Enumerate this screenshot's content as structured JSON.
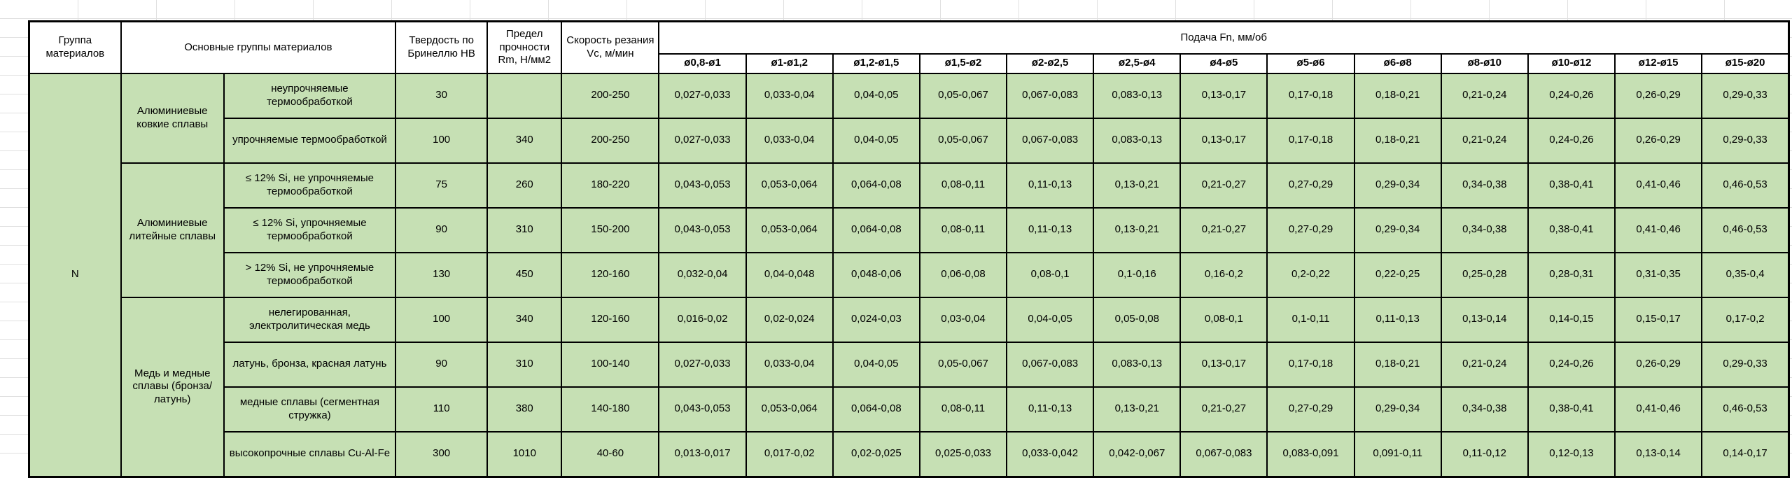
{
  "colors": {
    "cell_green": "#c6e0b4",
    "border_black": "#000000",
    "gridline_gray": "#e0e0e0",
    "header_bg": "#ffffff"
  },
  "table": {
    "headers": {
      "group": "Группа материалов",
      "main_groups": "Основные группы материалов",
      "hardness": "Твердость по Бринеллю HB",
      "strength": "Предел прочности Rm, Н/мм2",
      "speed": "Скорость резания Vc, м/мин",
      "feed": "Подача Fn, мм/об"
    },
    "feed_columns": [
      "ø0,8-ø1",
      "ø1-ø1,2",
      "ø1,2-ø1,5",
      "ø1,5-ø2",
      "ø2-ø2,5",
      "ø2,5-ø4",
      "ø4-ø5",
      "ø5-ø6",
      "ø6-ø8",
      "ø8-ø10",
      "ø10-ø12",
      "ø12-ø15",
      "ø15-ø20"
    ],
    "group_label": "N",
    "material_groups": [
      {
        "name": "Алюминиевые ковкие сплавы",
        "rows": [
          {
            "label": "неупрочняемые термообработкой",
            "hardness": "30",
            "strength": "",
            "speed": "200-250",
            "feeds": [
              "0,027-0,033",
              "0,033-0,04",
              "0,04-0,05",
              "0,05-0,067",
              "0,067-0,083",
              "0,083-0,13",
              "0,13-0,17",
              "0,17-0,18",
              "0,18-0,21",
              "0,21-0,24",
              "0,24-0,26",
              "0,26-0,29",
              "0,29-0,33"
            ]
          },
          {
            "label": "упрочняемые термообработкой",
            "hardness": "100",
            "strength": "340",
            "speed": "200-250",
            "feeds": [
              "0,027-0,033",
              "0,033-0,04",
              "0,04-0,05",
              "0,05-0,067",
              "0,067-0,083",
              "0,083-0,13",
              "0,13-0,17",
              "0,17-0,18",
              "0,18-0,21",
              "0,21-0,24",
              "0,24-0,26",
              "0,26-0,29",
              "0,29-0,33"
            ]
          }
        ]
      },
      {
        "name": "Алюминиевые литейные сплавы",
        "rows": [
          {
            "label": "≤ 12% Si, не упрочняемые термообработкой",
            "hardness": "75",
            "strength": "260",
            "speed": "180-220",
            "feeds": [
              "0,043-0,053",
              "0,053-0,064",
              "0,064-0,08",
              "0,08-0,11",
              "0,11-0,13",
              "0,13-0,21",
              "0,21-0,27",
              "0,27-0,29",
              "0,29-0,34",
              "0,34-0,38",
              "0,38-0,41",
              "0,41-0,46",
              "0,46-0,53"
            ]
          },
          {
            "label": "≤ 12% Si, упрочняемые термообработкой",
            "hardness": "90",
            "strength": "310",
            "speed": "150-200",
            "feeds": [
              "0,043-0,053",
              "0,053-0,064",
              "0,064-0,08",
              "0,08-0,11",
              "0,11-0,13",
              "0,13-0,21",
              "0,21-0,27",
              "0,27-0,29",
              "0,29-0,34",
              "0,34-0,38",
              "0,38-0,41",
              "0,41-0,46",
              "0,46-0,53"
            ]
          },
          {
            "label": "> 12% Si, не упрочняемые термообработкой",
            "hardness": "130",
            "strength": "450",
            "speed": "120-160",
            "feeds": [
              "0,032-0,04",
              "0,04-0,048",
              "0,048-0,06",
              "0,06-0,08",
              "0,08-0,1",
              "0,1-0,16",
              "0,16-0,2",
              "0,2-0,22",
              "0,22-0,25",
              "0,25-0,28",
              "0,28-0,31",
              "0,31-0,35",
              "0,35-0,4"
            ]
          }
        ]
      },
      {
        "name": "Медь и медные сплавы (бронза/латунь)",
        "rows": [
          {
            "label": "нелегированная, электролитическая медь",
            "hardness": "100",
            "strength": "340",
            "speed": "120-160",
            "feeds": [
              "0,016-0,02",
              "0,02-0,024",
              "0,024-0,03",
              "0,03-0,04",
              "0,04-0,05",
              "0,05-0,08",
              "0,08-0,1",
              "0,1-0,11",
              "0,11-0,13",
              "0,13-0,14",
              "0,14-0,15",
              "0,15-0,17",
              "0,17-0,2"
            ]
          },
          {
            "label": "латунь, бронза, красная латунь",
            "hardness": "90",
            "strength": "310",
            "speed": "100-140",
            "feeds": [
              "0,027-0,033",
              "0,033-0,04",
              "0,04-0,05",
              "0,05-0,067",
              "0,067-0,083",
              "0,083-0,13",
              "0,13-0,17",
              "0,17-0,18",
              "0,18-0,21",
              "0,21-0,24",
              "0,24-0,26",
              "0,26-0,29",
              "0,29-0,33"
            ]
          },
          {
            "label": "медные сплавы (сегментная стружка)",
            "hardness": "110",
            "strength": "380",
            "speed": "140-180",
            "feeds": [
              "0,043-0,053",
              "0,053-0,064",
              "0,064-0,08",
              "0,08-0,11",
              "0,11-0,13",
              "0,13-0,21",
              "0,21-0,27",
              "0,27-0,29",
              "0,29-0,34",
              "0,34-0,38",
              "0,38-0,41",
              "0,41-0,46",
              "0,46-0,53"
            ]
          },
          {
            "label": "высокопрочные сплавы Cu-Al-Fe",
            "hardness": "300",
            "strength": "1010",
            "speed": "40-60",
            "feeds": [
              "0,013-0,017",
              "0,017-0,02",
              "0,02-0,025",
              "0,025-0,033",
              "0,033-0,042",
              "0,042-0,067",
              "0,067-0,083",
              "0,083-0,091",
              "0,091-0,11",
              "0,11-0,12",
              "0,12-0,13",
              "0,13-0,14",
              "0,14-0,17"
            ]
          }
        ]
      }
    ]
  }
}
